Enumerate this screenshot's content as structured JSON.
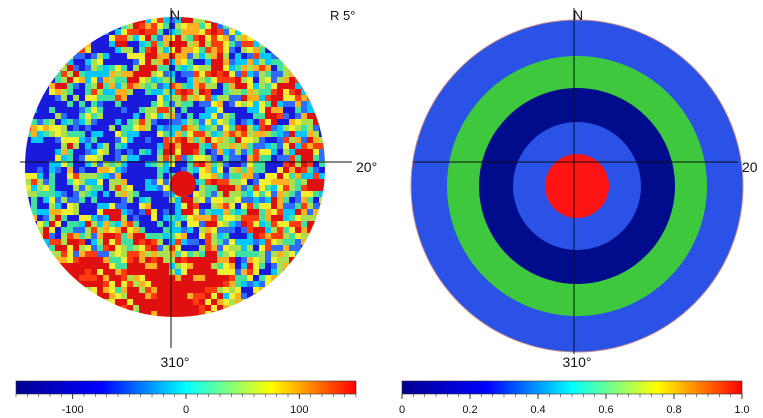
{
  "left_panel": {
    "labels": {
      "north": "N",
      "east": "20°",
      "south": "310°",
      "radius": "R 5°"
    },
    "colorbar": {
      "ticks": [
        "-100",
        "0",
        "100"
      ],
      "tick_values": [
        -100,
        0,
        100
      ],
      "range": [
        -150,
        150
      ],
      "gradient": [
        "#00008f",
        "#0000ff",
        "#00ffff",
        "#ffff00",
        "#ff0000"
      ]
    },
    "palette": [
      "#1a1adc",
      "#2f6bff",
      "#00c8ff",
      "#40e0a0",
      "#a8e050",
      "#f0f030",
      "#ffb020",
      "#ff3b10",
      "#e01010"
    ]
  },
  "right_panel": {
    "labels": {
      "north": "N",
      "east": "20",
      "south": "310°"
    },
    "colorbar": {
      "ticks": [
        "0",
        "0.2",
        "0.4",
        "0.6",
        "0.8",
        "1.0"
      ],
      "tick_values": [
        0,
        0.2,
        0.4,
        0.6,
        0.8,
        1.0
      ],
      "range": [
        0,
        1
      ],
      "gradient": [
        "#00008f",
        "#0000ff",
        "#00ffff",
        "#ffff00",
        "#ff0000"
      ]
    },
    "rings": [
      {
        "color": "#2a52e6"
      },
      {
        "color": "#3ec83e"
      },
      {
        "color": "#000c8c"
      },
      {
        "color": "#2a52e6"
      },
      {
        "color": "#ff1414"
      }
    ]
  }
}
